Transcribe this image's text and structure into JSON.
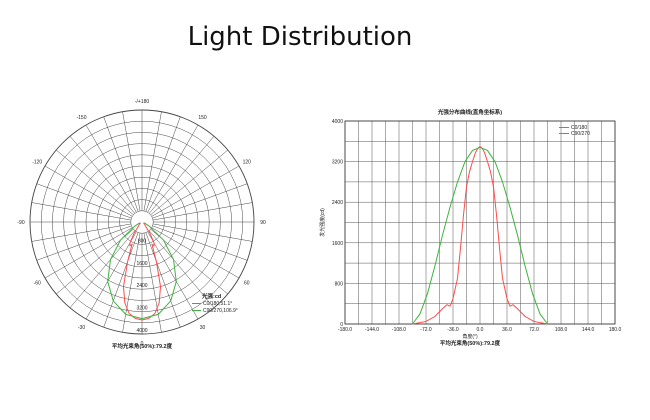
{
  "title": "Light Distribution",
  "chart_data": [
    {
      "type": "polar",
      "angle_labels": [
        {
          "deg": 180,
          "text": "-/+180"
        },
        {
          "deg": -150,
          "text": "-150"
        },
        {
          "deg": 150,
          "text": "150"
        },
        {
          "deg": -120,
          "text": "-120"
        },
        {
          "deg": 120,
          "text": "120"
        },
        {
          "deg": -90,
          "text": "-90"
        },
        {
          "deg": 90,
          "text": "90"
        },
        {
          "deg": -60,
          "text": "-60"
        },
        {
          "deg": 60,
          "text": "60"
        },
        {
          "deg": -30,
          "text": "-30"
        },
        {
          "deg": 30,
          "text": "30"
        },
        {
          "deg": 0,
          "text": "0"
        }
      ],
      "radial_ticks": [
        {
          "value": 800,
          "text": "800"
        },
        {
          "value": 1600,
          "text": "1600"
        },
        {
          "value": 2400,
          "text": "2400"
        },
        {
          "value": 3200,
          "text": "3200"
        },
        {
          "value": 4000,
          "text": "4000"
        }
      ],
      "rmax": 4000,
      "legend_title": "光强:cd",
      "series": [
        {
          "name": "C0/180,51.1°",
          "color": "#ff4a4a",
          "angles": [
            -60,
            -50,
            -40,
            -35,
            -30,
            -27,
            -24,
            -20,
            -16,
            -12,
            -8,
            -4,
            0,
            4,
            8,
            12,
            16,
            20,
            24,
            27,
            30,
            35,
            40,
            50,
            60
          ],
          "values": [
            60,
            120,
            200,
            500,
            850,
            950,
            880,
            1500,
            2400,
            2950,
            3300,
            3450,
            3500,
            3450,
            3300,
            2950,
            2400,
            1500,
            880,
            950,
            850,
            500,
            200,
            120,
            60
          ]
        },
        {
          "name": "C90/270,106.9°",
          "color": "#3db33d",
          "angles": [
            -70,
            -60,
            -50,
            -40,
            -30,
            -20,
            -10,
            0,
            10,
            20,
            30,
            40,
            50,
            60,
            70
          ],
          "values": [
            80,
            300,
            1000,
            1750,
            2450,
            3000,
            3350,
            3450,
            3350,
            3000,
            2450,
            1750,
            1000,
            300,
            80
          ]
        }
      ],
      "footer": "平均光束角(50%):79.2度"
    },
    {
      "type": "line",
      "title": "光强分布曲线(直角坐标系)",
      "xlabel": "角度(°)",
      "ylabel": "发光强度(cd)",
      "xlim": [
        -180,
        180
      ],
      "ylim": [
        0,
        4000
      ],
      "xticks": [
        {
          "value": -180,
          "text": "-180.0"
        },
        {
          "value": -144,
          "text": "-144.0"
        },
        {
          "value": -108,
          "text": "-108.0"
        },
        {
          "value": -72,
          "text": "-72.0"
        },
        {
          "value": -36,
          "text": "-36.0"
        },
        {
          "value": 0,
          "text": "0.0"
        },
        {
          "value": 36,
          "text": "36.0"
        },
        {
          "value": 72,
          "text": "72.0"
        },
        {
          "value": 108,
          "text": "108.0"
        },
        {
          "value": 144,
          "text": "144.0"
        },
        {
          "value": 180,
          "text": "180.0"
        }
      ],
      "yticks": [
        {
          "value": 0,
          "text": "0"
        },
        {
          "value": 800,
          "text": "800"
        },
        {
          "value": 1600,
          "text": "1600"
        },
        {
          "value": 2400,
          "text": "2400"
        },
        {
          "value": 3200,
          "text": "3200"
        },
        {
          "value": 4000,
          "text": "4000"
        }
      ],
      "series": [
        {
          "name": "C0/180",
          "color": "#ff4a4a",
          "x": [
            -90,
            -72,
            -60,
            -50,
            -44,
            -40,
            -36,
            -30,
            -26,
            -22,
            -18,
            -14,
            -10,
            -6,
            -3,
            0,
            3,
            6,
            10,
            14,
            18,
            22,
            26,
            30,
            36,
            40,
            44,
            50,
            60,
            72,
            90
          ],
          "y": [
            0,
            50,
            150,
            300,
            380,
            350,
            500,
            900,
            1500,
            2150,
            2700,
            3000,
            3200,
            3380,
            3460,
            3500,
            3460,
            3380,
            3200,
            3000,
            2700,
            2150,
            1500,
            900,
            500,
            350,
            380,
            300,
            150,
            50,
            0
          ]
        },
        {
          "name": "C90/270",
          "color": "#3db33d",
          "x": [
            -90,
            -80,
            -70,
            -60,
            -50,
            -40,
            -30,
            -20,
            -10,
            0,
            10,
            20,
            30,
            40,
            50,
            60,
            70,
            80,
            90
          ],
          "y": [
            0,
            200,
            600,
            1150,
            1750,
            2300,
            2800,
            3200,
            3420,
            3480,
            3420,
            3200,
            2800,
            2300,
            1750,
            1150,
            600,
            200,
            0
          ]
        }
      ],
      "legend": "top-right",
      "grid": true,
      "footer": "平均光束角(50%):79.2度"
    }
  ]
}
